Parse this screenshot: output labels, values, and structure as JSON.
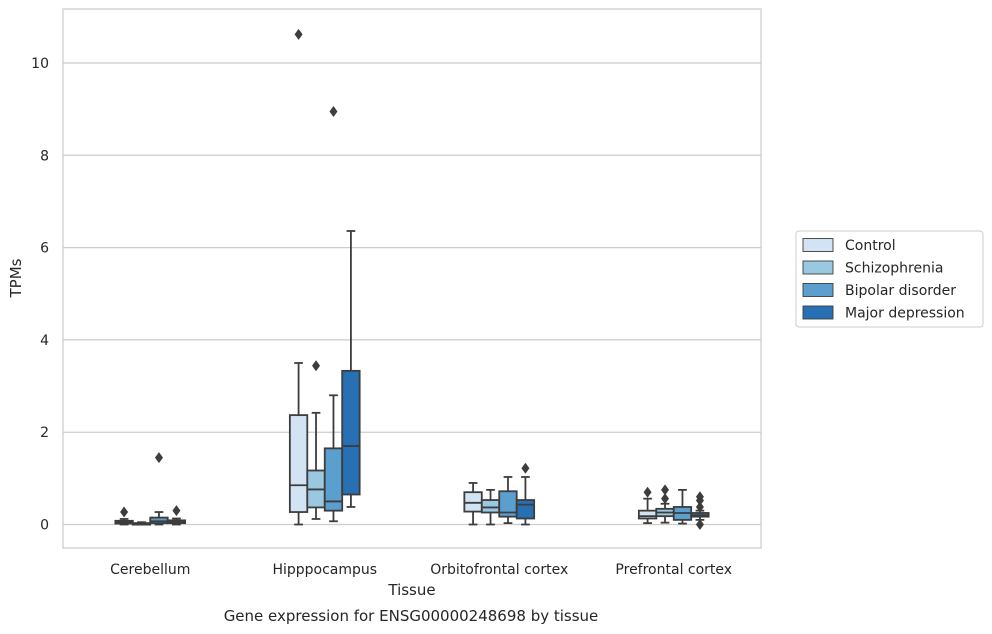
{
  "caption": "Gene expression for ENSG00000248698 by tissue",
  "chart_data": {
    "type": "box",
    "xlabel": "Tissue",
    "ylabel": "TPMs",
    "ylim": [
      -0.5,
      11.2
    ],
    "yticks": [
      0,
      2,
      4,
      6,
      8,
      10
    ],
    "grid": true,
    "legend_position": "right",
    "categories": [
      "Cerebellum",
      "Hipppocampus",
      "Orbitofrontal cortex",
      "Prefrontal cortex"
    ],
    "series": [
      {
        "name": "Control",
        "color": "#d2e3f3",
        "boxes": [
          {
            "whislo": 0.0,
            "q1": 0.02,
            "med": 0.05,
            "q3": 0.08,
            "whishi": 0.12,
            "fliers": [
              0.27
            ]
          },
          {
            "whislo": 0.0,
            "q1": 0.27,
            "med": 0.85,
            "q3": 2.37,
            "whishi": 3.5,
            "fliers": [
              10.62
            ]
          },
          {
            "whislo": 0.0,
            "q1": 0.28,
            "med": 0.47,
            "q3": 0.7,
            "whishi": 0.9,
            "fliers": []
          },
          {
            "whislo": 0.03,
            "q1": 0.13,
            "med": 0.18,
            "q3": 0.3,
            "whishi": 0.56,
            "fliers": [
              0.7
            ]
          }
        ]
      },
      {
        "name": "Schizophrenia",
        "color": "#9ac8e0",
        "boxes": [
          {
            "whislo": 0.0,
            "q1": 0.0,
            "med": 0.01,
            "q3": 0.03,
            "whishi": 0.05,
            "fliers": []
          },
          {
            "whislo": 0.12,
            "q1": 0.37,
            "med": 0.76,
            "q3": 1.17,
            "whishi": 2.42,
            "fliers": [
              3.44
            ]
          },
          {
            "whislo": 0.0,
            "q1": 0.26,
            "med": 0.37,
            "q3": 0.53,
            "whishi": 0.75,
            "fliers": []
          },
          {
            "whislo": 0.04,
            "q1": 0.18,
            "med": 0.26,
            "q3": 0.34,
            "whishi": 0.45,
            "fliers": [
              0.56,
              0.75
            ]
          }
        ]
      },
      {
        "name": "Bipolar disorder",
        "color": "#5a9fcd",
        "boxes": [
          {
            "whislo": 0.0,
            "q1": 0.03,
            "med": 0.07,
            "q3": 0.15,
            "whishi": 0.27,
            "fliers": [
              1.45
            ]
          },
          {
            "whislo": 0.07,
            "q1": 0.3,
            "med": 0.5,
            "q3": 1.65,
            "whishi": 2.8,
            "fliers": [
              8.95
            ]
          },
          {
            "whislo": 0.03,
            "q1": 0.17,
            "med": 0.26,
            "q3": 0.72,
            "whishi": 1.03,
            "fliers": []
          },
          {
            "whislo": 0.02,
            "q1": 0.1,
            "med": 0.25,
            "q3": 0.38,
            "whishi": 0.75,
            "fliers": []
          }
        ]
      },
      {
        "name": "Major depression",
        "color": "#2770b4",
        "boxes": [
          {
            "whislo": 0.0,
            "q1": 0.03,
            "med": 0.06,
            "q3": 0.09,
            "whishi": 0.13,
            "fliers": [
              0.3
            ]
          },
          {
            "whislo": 0.38,
            "q1": 0.65,
            "med": 1.7,
            "q3": 3.33,
            "whishi": 6.36,
            "fliers": []
          },
          {
            "whislo": 0.0,
            "q1": 0.13,
            "med": 0.43,
            "q3": 0.53,
            "whishi": 1.03,
            "fliers": [
              1.22
            ]
          },
          {
            "whislo": 0.1,
            "q1": 0.17,
            "med": 0.2,
            "q3": 0.25,
            "whishi": 0.3,
            "fliers": [
              0.0,
              0.38,
              0.52,
              0.6
            ]
          }
        ]
      }
    ]
  }
}
